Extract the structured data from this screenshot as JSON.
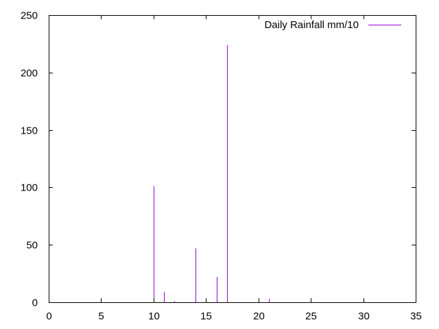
{
  "chart_data": {
    "type": "impulse",
    "title": "",
    "xlabel": "",
    "ylabel": "",
    "xlim": [
      0,
      35
    ],
    "ylim": [
      0,
      250
    ],
    "x_ticks": [
      0,
      5,
      10,
      15,
      20,
      25,
      30,
      35
    ],
    "y_ticks": [
      0,
      50,
      100,
      150,
      200,
      250
    ],
    "x_tick_labels": [
      "0",
      "5",
      "10",
      "15",
      "20",
      "25",
      "30",
      "35"
    ],
    "y_tick_labels": [
      "0",
      "50",
      "100",
      "150",
      "200",
      "250"
    ],
    "grid": false,
    "legend_position": "top-right",
    "series": [
      {
        "name": "Daily Rainfall mm/10",
        "color": "#9400d3",
        "x": [
          10,
          11,
          12,
          14,
          15,
          16,
          17,
          20,
          21
        ],
        "y": [
          101,
          9,
          1,
          47,
          1,
          22,
          224,
          1,
          3
        ]
      }
    ]
  }
}
